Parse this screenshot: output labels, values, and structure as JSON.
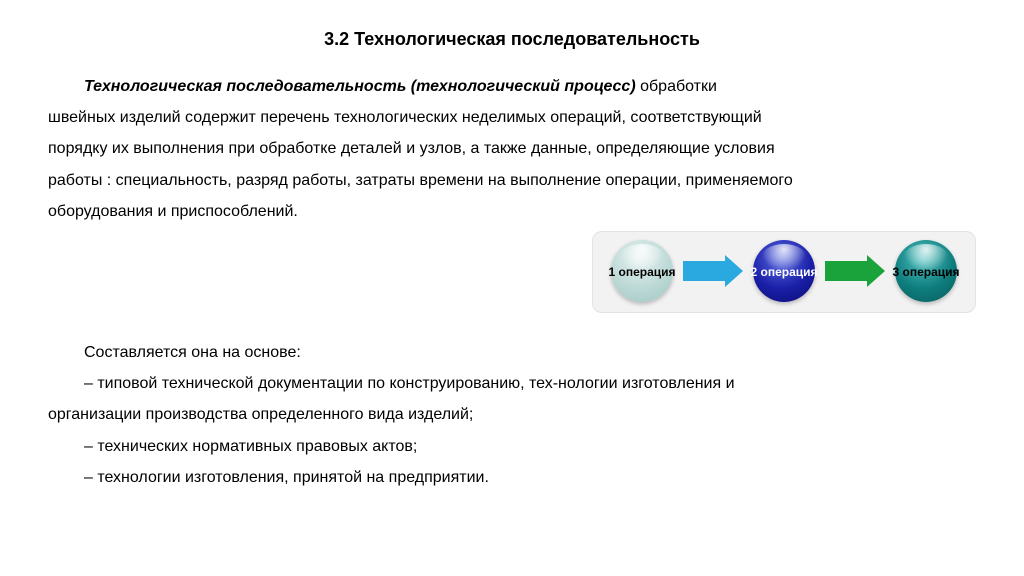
{
  "heading": "3.2 Технологическая последовательность",
  "lead_bold": "Технологическая последовательность (технологический процесс)",
  "lead_rest": " обработки",
  "p2": "швейных изделий содержит перечень технологических неделимых операций, соответствующий",
  "p3": "порядку их выполнения при обработке деталей и узлов, а также данные, определяющие условия",
  "p4": "работы : специальность, разряд работы, затраты времени на выполнение операции, применяемого",
  "p5": "оборудования и приспособлений.",
  "flow": {
    "panel_bg": "#f2f2f2",
    "panel_border": "#e2e2e2",
    "spheres": [
      {
        "label": "1 операция",
        "fill": "#bcd9d6",
        "grad_top": "#e6f2f0",
        "grad_bottom": "#9fc7c3",
        "label_color": "#000000"
      },
      {
        "label": "2 операция",
        "fill": "#1a1fa8",
        "grad_top": "#5a6be0",
        "grad_bottom": "#0a0a6e",
        "label_color": "#ffffff"
      },
      {
        "label": "3 операция",
        "fill": "#0e7d7d",
        "grad_top": "#4fbfbf",
        "grad_bottom": "#085a5a",
        "label_color": "#000000"
      }
    ],
    "arrows": [
      {
        "color": "#2aa8e0"
      },
      {
        "color": "#1aa33a"
      }
    ]
  },
  "basis_intro": "Составляется она на основе:",
  "items": [
    "– типовой технической документации по конструированию, тех-нологии изготовления и",
    "организации производства определенного вида изделий;",
    "– технических нормативных правовых актов;",
    "– технологии изготовления, принятой на предприятии."
  ]
}
